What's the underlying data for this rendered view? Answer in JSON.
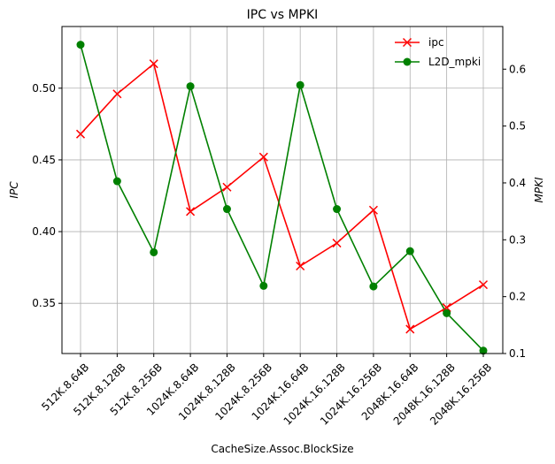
{
  "chart_data": {
    "type": "line",
    "title": "IPC vs MPKI",
    "xlabel": "CacheSize.Assoc.BlockSize",
    "ylabel_left": "IPC",
    "ylabel_right": "MPKI",
    "categories": [
      "512K.8.64B",
      "512K.8.128B",
      "512K.8.256B",
      "1024K.8.64B",
      "1024K.8.128B",
      "1024K.8.256B",
      "1024K.16.64B",
      "1024K.16.128B",
      "1024K.16.256B",
      "2048K.16.64B",
      "2048K.16.128B",
      "2048K.16.256B"
    ],
    "series": [
      {
        "name": "ipc",
        "axis": "left",
        "color": "#ff0000",
        "marker": "x",
        "values": [
          0.468,
          0.496,
          0.517,
          0.414,
          0.431,
          0.452,
          0.376,
          0.392,
          0.415,
          0.332,
          0.347,
          0.363
        ]
      },
      {
        "name": "L2D_mpki",
        "axis": "right",
        "color": "#008000",
        "marker": "circle",
        "values": [
          0.643,
          0.403,
          0.278,
          0.57,
          0.354,
          0.219,
          0.572,
          0.354,
          0.218,
          0.28,
          0.171,
          0.105
        ]
      }
    ],
    "ylim_left": [
      0.315,
      0.543
    ],
    "ylim_right": [
      0.1,
      0.675
    ],
    "yticks_left": [
      "0.35",
      "0.40",
      "0.45",
      "0.50"
    ],
    "yticks_right": [
      "0.1",
      "0.2",
      "0.3",
      "0.4",
      "0.5",
      "0.6"
    ],
    "grid": true,
    "legend_position": "top-right"
  }
}
